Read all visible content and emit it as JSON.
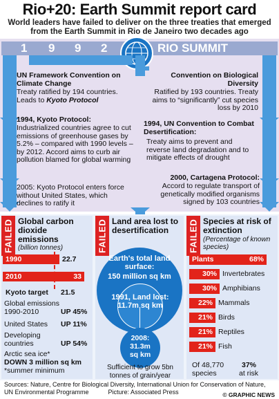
{
  "title": "Rio+20: Earth Summit report card",
  "subtitle": "World leaders have failed to deliver on the three treaties that emerged from the Earth Summit in Rio de Janeiro two decades ago",
  "banner": {
    "digits": [
      "1",
      "9",
      "9",
      "2"
    ],
    "rio_label": "RIO SUMMIT"
  },
  "left": {
    "unfccc_head": "UN Framework Convention on Climate Change",
    "unfccc_text_1": "Treaty ratified by 194 countries.",
    "unfccc_text_2": "Leads to ",
    "unfccc_text_3": "Kyoto Protocol",
    "kyoto_head": "1994, Kyoto Protocol:",
    "kyoto_text": "Industrialized countries agree to cut emissions of greenhouse gases by 5.2% – compared with 1990 levels – by 2012. Accord aims to curb air pollution blamed for global warming",
    "y2005": "2005: Kyoto Protocol enters force without United States, which declines to ratify it"
  },
  "right": {
    "cbd_head": "Convention on Biological Diversity",
    "cbd_text": "Ratified by 193 countries. Treaty aims to “significantly” cut species loss by 2010",
    "unccd_head": "1994, UN Convention to Combat Desertification:",
    "unccd_text": "Treaty aims to prevent and reverse land degradation and to mitigate effects of drought",
    "cartagena_head": "2000, Cartagena Protocol:",
    "cartagena_text": "Accord to regulate transport of genetically modified organisms signed by 103 countries"
  },
  "failed_label": "FAILED",
  "carbon": {
    "head": "Global carbon dioxide emissions",
    "unit": "(billion tonnes)",
    "rows": [
      {
        "year": "1990",
        "value": "22.7"
      },
      {
        "year": "2010",
        "value": "33"
      }
    ],
    "kyoto_target_label": "Kyoto target",
    "kyoto_target_value": "21.5",
    "stats": [
      {
        "label": "Global emissions 1990-2010",
        "value": "UP 45%"
      },
      {
        "label": "United States",
        "value": "UP 11%"
      },
      {
        "label": "Developing countries",
        "value": "UP 54%"
      }
    ],
    "arctic_label": "Arctic sea ice*",
    "arctic_value": "DOWN 3 million sq km",
    "footnote": "*summer minimum"
  },
  "desert": {
    "head": "Land area lost to desertification",
    "total_label": "Earth's total land surface:",
    "total_value": "150 million sq km",
    "lost1991_label": "1991, Land lost:",
    "lost1991_value": "11.7m sq km",
    "y2008": "2008:",
    "y2008_value": "31.3m",
    "y2008_unit": "sq km",
    "footer": "Sufficient to grow 5bn tonnes of grain/year"
  },
  "species": {
    "head": "Species at risk of extinction",
    "unit": "(Percentage of known species)",
    "rows": [
      {
        "label": "Plants",
        "value": "68%",
        "pct": 68
      },
      {
        "label": "Invertebrates",
        "value": "30%",
        "pct": 30
      },
      {
        "label": "Amphibians",
        "value": "30%",
        "pct": 30
      },
      {
        "label": "Mammals",
        "value": "22%",
        "pct": 22
      },
      {
        "label": "Birds",
        "value": "21%",
        "pct": 21
      },
      {
        "label": "Reptiles",
        "value": "21%",
        "pct": 21
      },
      {
        "label": "Fish",
        "value": "21%",
        "pct": 21
      }
    ],
    "footer_left": "Of 48,770 species",
    "footer_right_value": "37%",
    "footer_right_label": "at risk"
  },
  "sources": "Sources: Nature, Centre for Biological Diversity, International Union for Conservation of Nature, UN Environmental Programme",
  "picture": "Picture: Associated Press",
  "credit": "© GRAPHIC NEWS",
  "colors": {
    "accent_red": "#e2231a",
    "accent_blue": "#1a74c4",
    "banner": "#9aa9d0"
  }
}
